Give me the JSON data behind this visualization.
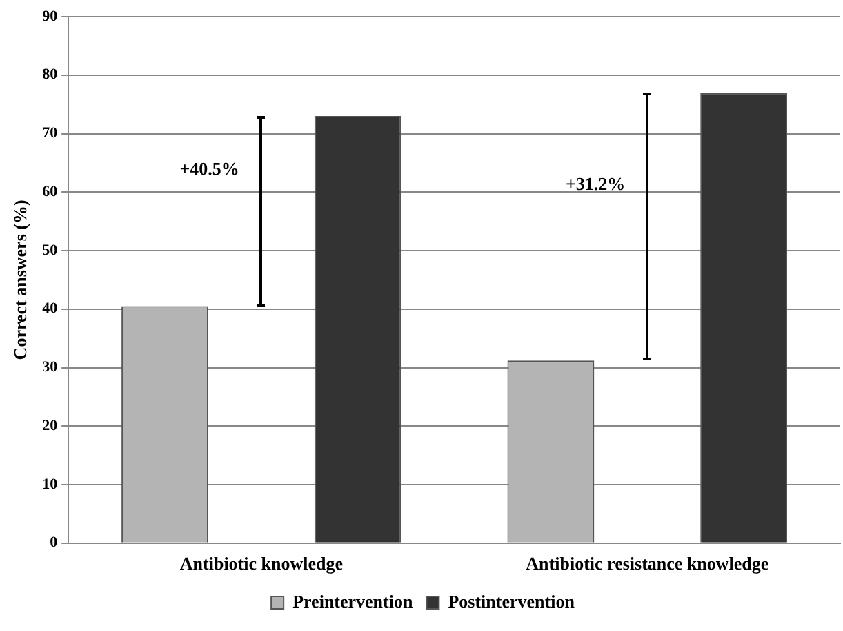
{
  "chart_data": {
    "type": "bar",
    "ylabel": "Correct answers (%)",
    "categories": [
      "Antibiotic knowledge",
      "Antibiotic resistance knowledge"
    ],
    "series": [
      {
        "name": "Preintervention",
        "color": "#b4b4b4",
        "values": [
          40.5,
          31.2
        ]
      },
      {
        "name": "Postintervention",
        "color": "#333333",
        "values": [
          73,
          77
        ]
      }
    ],
    "ylim": [
      0,
      90
    ],
    "yticks": [
      0,
      10,
      20,
      30,
      40,
      50,
      60,
      70,
      80,
      90
    ],
    "grid": "y",
    "legend": "bottom",
    "annotations": [
      "+40.5%",
      "+31.2%"
    ]
  }
}
